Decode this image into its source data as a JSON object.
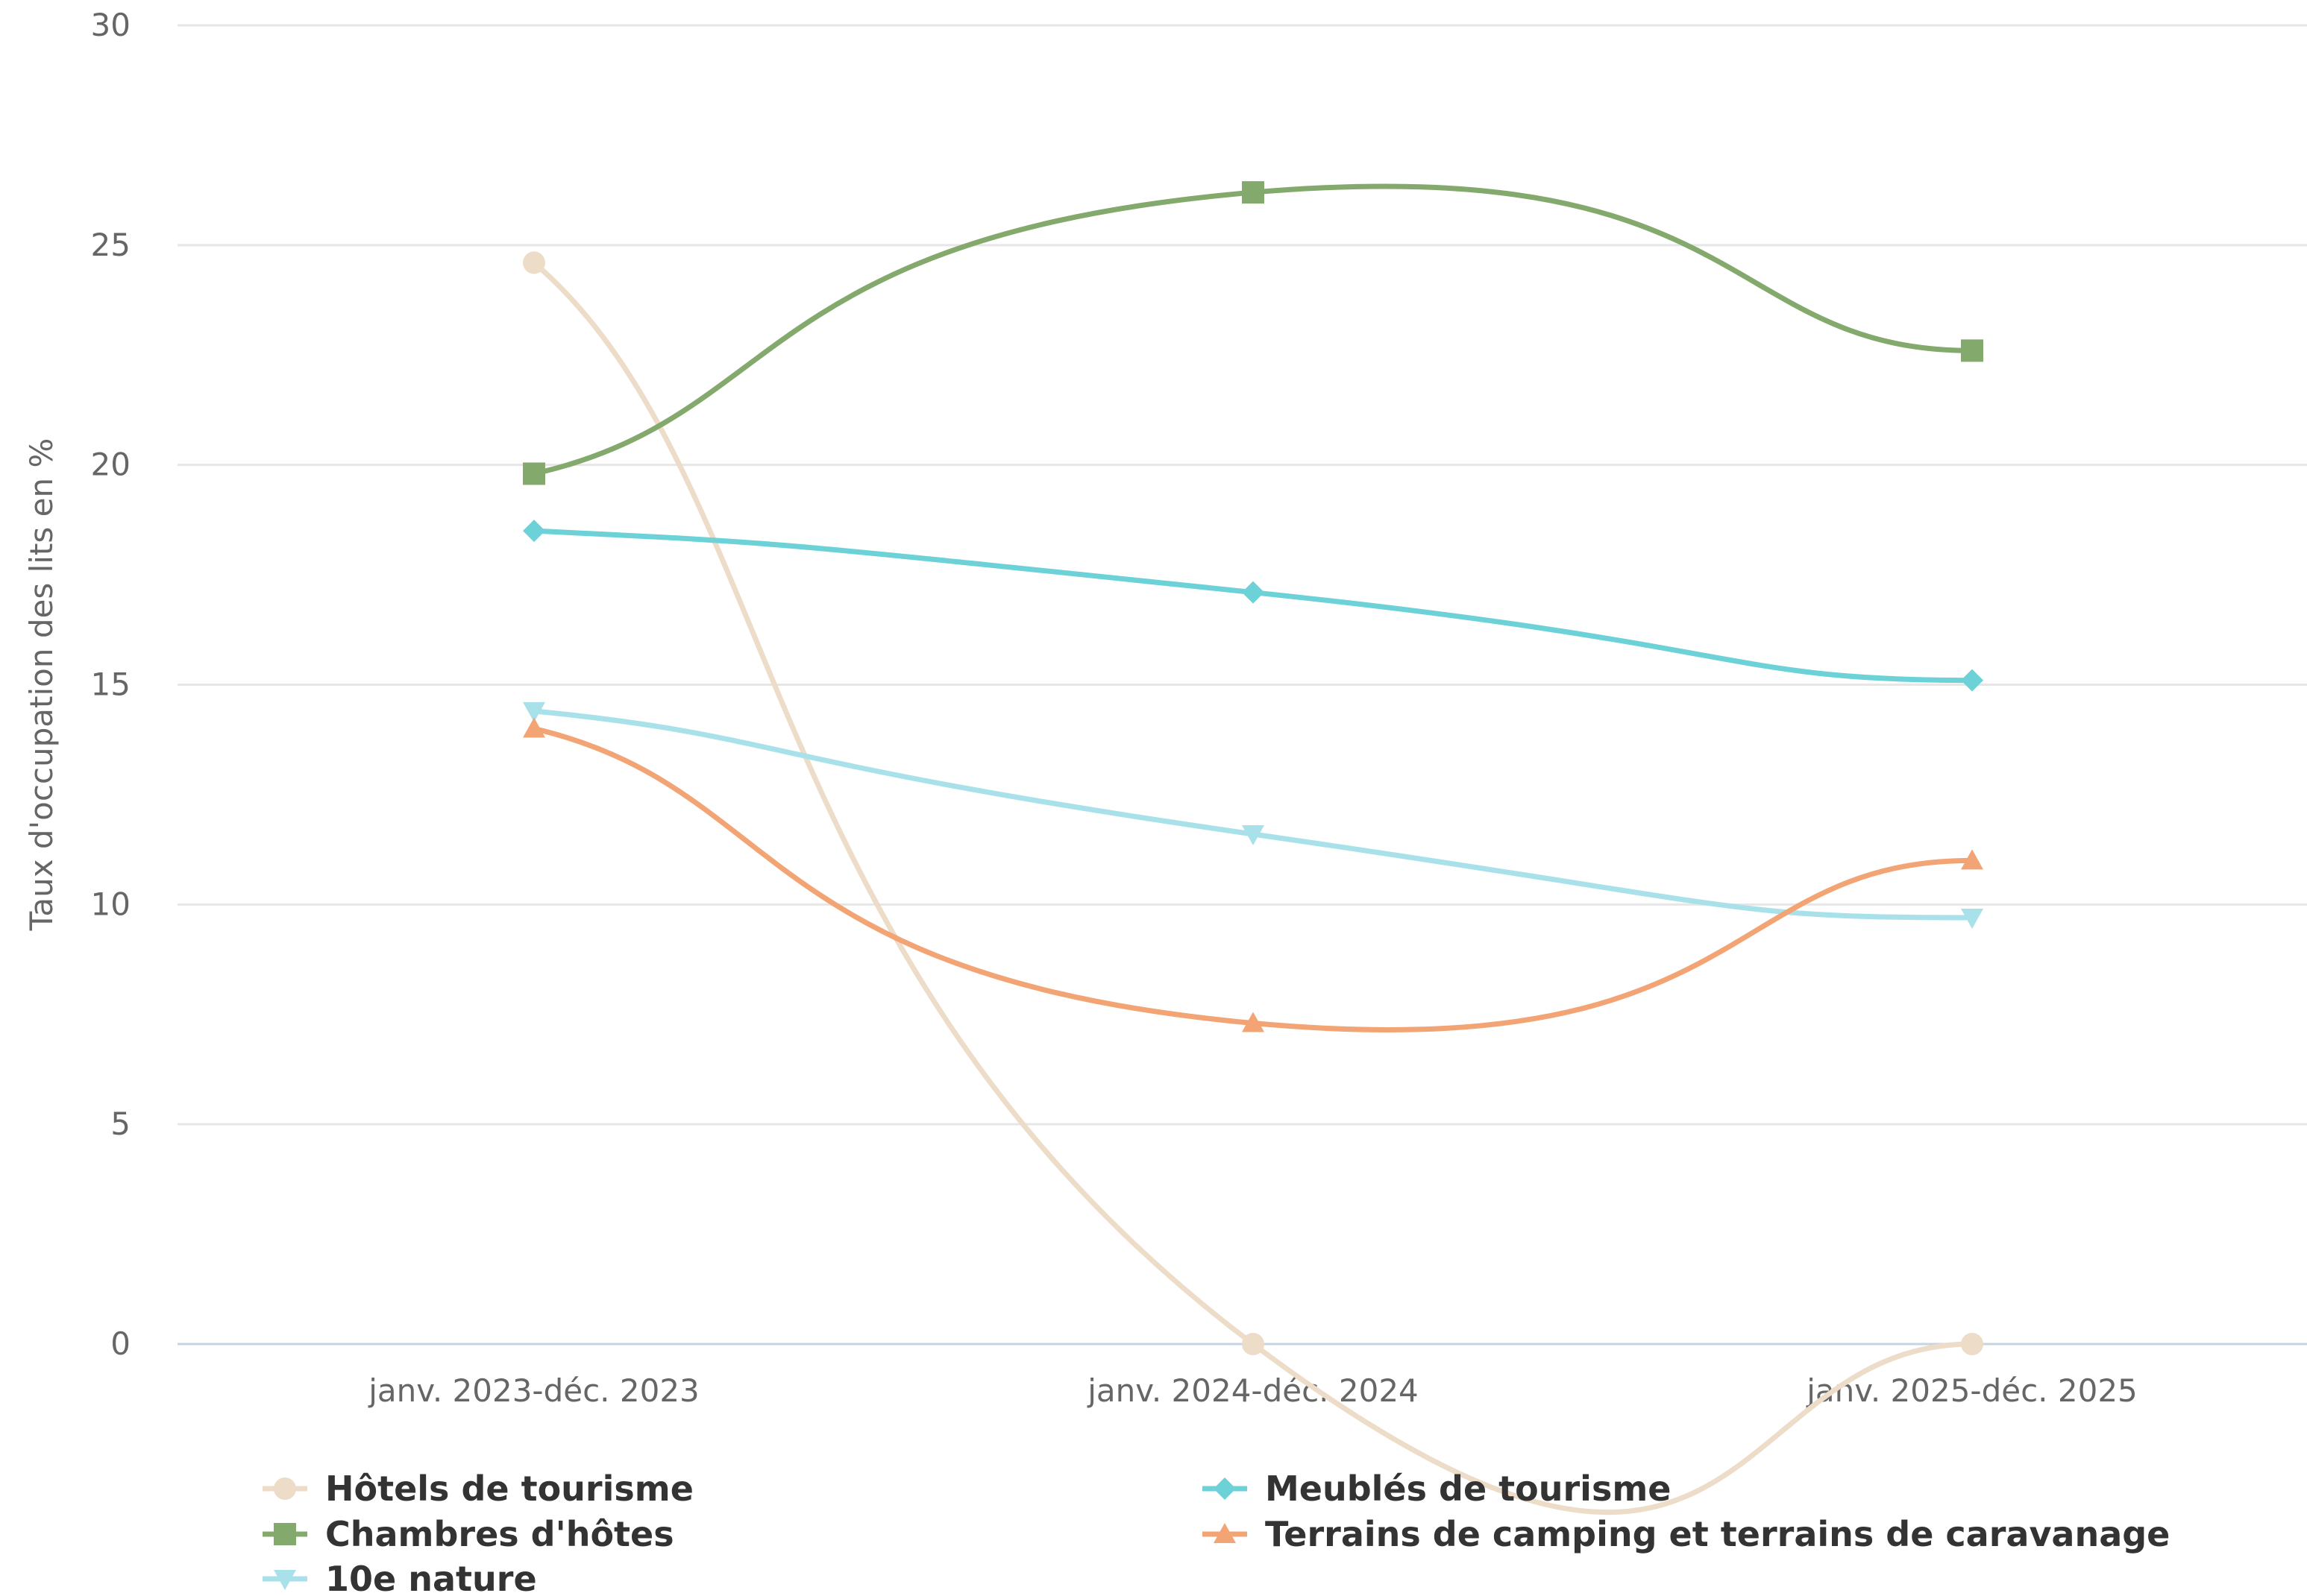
{
  "chart_data": {
    "type": "line",
    "categories": [
      "janv. 2023-déc. 2023",
      "janv. 2024-déc. 2024",
      "janv. 2025-déc. 2025"
    ],
    "ylabel": "Taux d'occupation des lits en %",
    "ylim": [
      0,
      30
    ],
    "yticks": [
      0,
      5,
      10,
      15,
      20,
      25,
      30
    ],
    "grid": true,
    "legend_position": "bottom",
    "series": [
      {
        "name": "Hôtels de tourisme",
        "values": [
          24.6,
          0,
          0
        ],
        "color": "#ecdcc8",
        "marker": "circle"
      },
      {
        "name": "Meublés de tourisme",
        "values": [
          18.5,
          17.1,
          15.1
        ],
        "color": "#6dd2d7",
        "marker": "diamond"
      },
      {
        "name": "Chambres d'hôtes",
        "values": [
          19.8,
          26.2,
          22.6
        ],
        "color": "#84a96c",
        "marker": "square"
      },
      {
        "name": "Terrains de camping et terrains de caravanage",
        "values": [
          14.0,
          7.3,
          11.0
        ],
        "color": "#f2a474",
        "marker": "triangle"
      },
      {
        "name": "10e nature",
        "values": [
          14.4,
          11.6,
          9.7
        ],
        "color": "#a9e1ea",
        "marker": "triangle-down"
      }
    ]
  }
}
